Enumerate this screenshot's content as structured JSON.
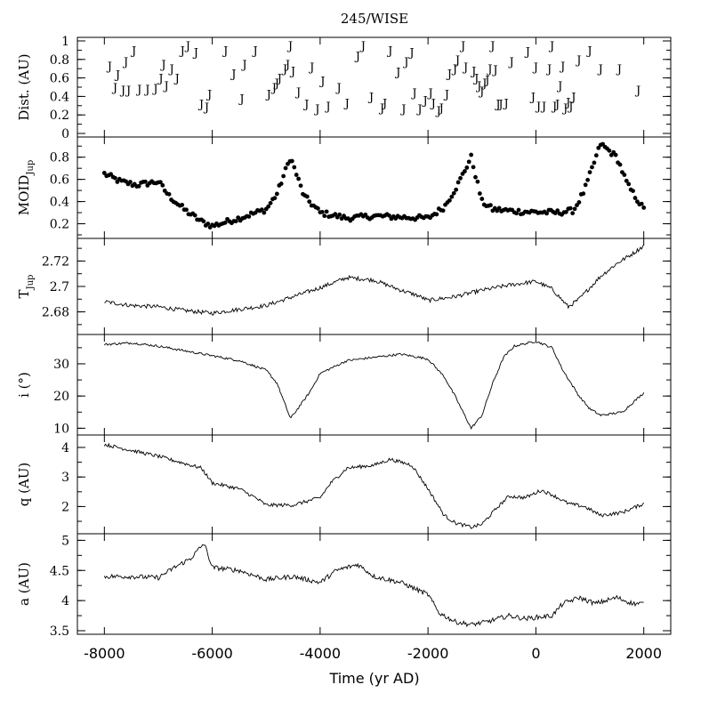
{
  "chart_data": {
    "type": "panel-stack",
    "title": "245/WISE",
    "xlabel": "Time (yr AD)",
    "xlim": [
      -8500,
      2500
    ],
    "xticks": [
      -8000,
      -6000,
      -4000,
      -2000,
      0,
      2000
    ],
    "xtick_labels": [
      "-8000",
      "-6000",
      "-4000",
      "-2000",
      "0",
      "2000"
    ],
    "panels": [
      {
        "id": "dist",
        "type": "scatter",
        "ylabel": "Dist. (AU)",
        "ylim": [
          0,
          1
        ],
        "yticks": [
          0,
          0.2,
          0.4,
          0.6,
          0.8,
          1
        ],
        "ytick_labels": [
          "0",
          "0.2",
          "0.4",
          "0.6",
          "0.8",
          "1"
        ],
        "marker_label": "J",
        "points": [
          [
            -7900,
            0.73
          ],
          [
            -7750,
            0.64
          ],
          [
            -7600,
            0.78
          ],
          [
            -7450,
            0.9
          ],
          [
            -7800,
            0.5
          ],
          [
            -7650,
            0.47
          ],
          [
            -7550,
            0.47
          ],
          [
            -7350,
            0.48
          ],
          [
            -7200,
            0.48
          ],
          [
            -7050,
            0.49
          ],
          [
            -6950,
            0.6
          ],
          [
            -6900,
            0.75
          ],
          [
            -6850,
            0.52
          ],
          [
            -6750,
            0.7
          ],
          [
            -6650,
            0.6
          ],
          [
            -6550,
            0.9
          ],
          [
            -6450,
            0.95
          ],
          [
            -6300,
            0.88
          ],
          [
            -6200,
            0.32
          ],
          [
            -6100,
            0.29
          ],
          [
            -6050,
            0.43
          ],
          [
            -5750,
            0.9
          ],
          [
            -5600,
            0.65
          ],
          [
            -5450,
            0.38
          ],
          [
            -5400,
            0.75
          ],
          [
            -5200,
            0.9
          ],
          [
            -4950,
            0.43
          ],
          [
            -4850,
            0.5
          ],
          [
            -4800,
            0.55
          ],
          [
            -4750,
            0.6
          ],
          [
            -4650,
            0.7
          ],
          [
            -4600,
            0.75
          ],
          [
            -4550,
            0.95
          ],
          [
            -4500,
            0.68
          ],
          [
            -4400,
            0.45
          ],
          [
            -4250,
            0.32
          ],
          [
            -4150,
            0.72
          ],
          [
            -4050,
            0.27
          ],
          [
            -3950,
            0.57
          ],
          [
            -3850,
            0.3
          ],
          [
            -3650,
            0.5
          ],
          [
            -3500,
            0.33
          ],
          [
            -3300,
            0.84
          ],
          [
            -3200,
            0.95
          ],
          [
            -3050,
            0.4
          ],
          [
            -2850,
            0.28
          ],
          [
            -2800,
            0.33
          ],
          [
            -2700,
            0.9
          ],
          [
            -2550,
            0.67
          ],
          [
            -2450,
            0.27
          ],
          [
            -2400,
            0.78
          ],
          [
            -2300,
            0.88
          ],
          [
            -2250,
            0.44
          ],
          [
            -2150,
            0.27
          ],
          [
            -2050,
            0.36
          ],
          [
            -1950,
            0.44
          ],
          [
            -1900,
            0.33
          ],
          [
            -1800,
            0.25
          ],
          [
            -1750,
            0.28
          ],
          [
            -1650,
            0.43
          ],
          [
            -1600,
            0.65
          ],
          [
            -1500,
            0.7
          ],
          [
            -1450,
            0.8
          ],
          [
            -1350,
            0.95
          ],
          [
            -1300,
            0.72
          ],
          [
            -1150,
            0.68
          ],
          [
            -1100,
            0.6
          ],
          [
            -1050,
            0.52
          ],
          [
            -1000,
            0.46
          ],
          [
            -950,
            0.55
          ],
          [
            -900,
            0.58
          ],
          [
            -850,
            0.7
          ],
          [
            -800,
            0.95
          ],
          [
            -750,
            0.69
          ],
          [
            -700,
            0.32
          ],
          [
            -650,
            0.32
          ],
          [
            -550,
            0.33
          ],
          [
            -450,
            0.78
          ],
          [
            -150,
            0.89
          ],
          [
            -50,
            0.4
          ],
          [
            0,
            0.72
          ],
          [
            50,
            0.3
          ],
          [
            150,
            0.3
          ],
          [
            250,
            0.7
          ],
          [
            300,
            0.95
          ],
          [
            350,
            0.3
          ],
          [
            400,
            0.32
          ],
          [
            450,
            0.52
          ],
          [
            500,
            0.73
          ],
          [
            550,
            0.28
          ],
          [
            600,
            0.34
          ],
          [
            650,
            0.3
          ],
          [
            700,
            0.4
          ],
          [
            800,
            0.8
          ],
          [
            1000,
            0.9
          ],
          [
            1200,
            0.7
          ],
          [
            1550,
            0.7
          ],
          [
            1900,
            0.47
          ]
        ]
      },
      {
        "id": "moid",
        "type": "scatter",
        "ylabel": "MOID",
        "ylabel_sub": "Jup",
        "ylim": [
          0.1,
          0.95
        ],
        "yticks": [
          0.2,
          0.4,
          0.6,
          0.8
        ],
        "ytick_labels": [
          "0.2",
          "0.4",
          "0.6",
          "0.8"
        ],
        "keypoints": [
          [
            -8000,
            0.65
          ],
          [
            -7700,
            0.58
          ],
          [
            -7400,
            0.55
          ],
          [
            -7000,
            0.58
          ],
          [
            -6800,
            0.45
          ],
          [
            -6500,
            0.32
          ],
          [
            -6200,
            0.22
          ],
          [
            -6000,
            0.18
          ],
          [
            -5500,
            0.25
          ],
          [
            -5000,
            0.33
          ],
          [
            -4800,
            0.47
          ],
          [
            -4550,
            0.8
          ],
          [
            -4300,
            0.45
          ],
          [
            -4000,
            0.3
          ],
          [
            -3500,
            0.25
          ],
          [
            -3000,
            0.27
          ],
          [
            -2500,
            0.26
          ],
          [
            -2000,
            0.25
          ],
          [
            -1700,
            0.35
          ],
          [
            -1450,
            0.55
          ],
          [
            -1200,
            0.8
          ],
          [
            -1000,
            0.4
          ],
          [
            -800,
            0.33
          ],
          [
            -300,
            0.31
          ],
          [
            400,
            0.3
          ],
          [
            700,
            0.32
          ],
          [
            900,
            0.5
          ],
          [
            1200,
            0.92
          ],
          [
            1500,
            0.8
          ],
          [
            1700,
            0.55
          ],
          [
            2000,
            0.33
          ]
        ]
      },
      {
        "id": "tjup",
        "type": "line",
        "ylabel": "T",
        "ylabel_sub": "Jup",
        "ylim": [
          2.665,
          2.735
        ],
        "yticks": [
          2.68,
          2.7,
          2.72
        ],
        "ytick_labels": [
          "2.68",
          "2.7",
          "2.72"
        ],
        "keypoints": [
          [
            -8000,
            2.688
          ],
          [
            -7500,
            2.685
          ],
          [
            -7000,
            2.684
          ],
          [
            -6500,
            2.681
          ],
          [
            -6000,
            2.679
          ],
          [
            -5000,
            2.685
          ],
          [
            -4500,
            2.692
          ],
          [
            -4000,
            2.699
          ],
          [
            -3500,
            2.707
          ],
          [
            -3000,
            2.705
          ],
          [
            -2500,
            2.697
          ],
          [
            -2200,
            2.693
          ],
          [
            -2000,
            2.689
          ],
          [
            -1500,
            2.692
          ],
          [
            -1000,
            2.697
          ],
          [
            -500,
            2.701
          ],
          [
            0,
            2.704
          ],
          [
            300,
            2.698
          ],
          [
            600,
            2.684
          ],
          [
            800,
            2.69
          ],
          [
            1000,
            2.699
          ],
          [
            1200,
            2.708
          ],
          [
            1500,
            2.718
          ],
          [
            1800,
            2.726
          ],
          [
            2000,
            2.732
          ]
        ]
      },
      {
        "id": "incl",
        "type": "line",
        "ylabel": "i (°)",
        "ylim": [
          9,
          38
        ],
        "yticks": [
          10,
          20,
          30
        ],
        "ytick_labels": [
          "10",
          "20",
          "30"
        ],
        "keypoints": [
          [
            -8000,
            36
          ],
          [
            -7500,
            36.5
          ],
          [
            -7000,
            35.5
          ],
          [
            -6500,
            34
          ],
          [
            -6000,
            32.5
          ],
          [
            -5500,
            31
          ],
          [
            -5000,
            28
          ],
          [
            -4800,
            24
          ],
          [
            -4550,
            13
          ],
          [
            -4200,
            21
          ],
          [
            -4000,
            27
          ],
          [
            -3500,
            31
          ],
          [
            -3000,
            32
          ],
          [
            -2500,
            33
          ],
          [
            -2000,
            31.5
          ],
          [
            -1700,
            26
          ],
          [
            -1500,
            20
          ],
          [
            -1200,
            10
          ],
          [
            -1000,
            14
          ],
          [
            -800,
            24
          ],
          [
            -600,
            32
          ],
          [
            -400,
            35.5
          ],
          [
            0,
            37
          ],
          [
            300,
            35
          ],
          [
            500,
            28
          ],
          [
            800,
            20
          ],
          [
            1000,
            16
          ],
          [
            1200,
            14
          ],
          [
            1600,
            15
          ],
          [
            2000,
            21
          ]
        ]
      },
      {
        "id": "q",
        "type": "line",
        "ylabel": "q (AU)",
        "ylim": [
          1.2,
          4.3
        ],
        "yticks": [
          2,
          3,
          4
        ],
        "ytick_labels": [
          "2",
          "3",
          "4"
        ],
        "keypoints": [
          [
            -8000,
            4.1
          ],
          [
            -7500,
            3.9
          ],
          [
            -7000,
            3.7
          ],
          [
            -6500,
            3.45
          ],
          [
            -6200,
            3.3
          ],
          [
            -6000,
            2.8
          ],
          [
            -5500,
            2.6
          ],
          [
            -5200,
            2.3
          ],
          [
            -5000,
            2.05
          ],
          [
            -4500,
            2.05
          ],
          [
            -4000,
            2.3
          ],
          [
            -3800,
            2.8
          ],
          [
            -3500,
            3.3
          ],
          [
            -3000,
            3.4
          ],
          [
            -2700,
            3.6
          ],
          [
            -2300,
            3.4
          ],
          [
            -2000,
            2.6
          ],
          [
            -1700,
            1.7
          ],
          [
            -1500,
            1.45
          ],
          [
            -1200,
            1.3
          ],
          [
            -1000,
            1.4
          ],
          [
            -700,
            2.0
          ],
          [
            -500,
            2.35
          ],
          [
            -200,
            2.3
          ],
          [
            100,
            2.55
          ],
          [
            300,
            2.4
          ],
          [
            600,
            2.1
          ],
          [
            900,
            2.0
          ],
          [
            1200,
            1.7
          ],
          [
            1600,
            1.8
          ],
          [
            2000,
            2.1
          ]
        ]
      },
      {
        "id": "a",
        "type": "line",
        "ylabel": "a (AU)",
        "ylim": [
          3.5,
          5.05
        ],
        "yticks": [
          3.5,
          4,
          4.5,
          5
        ],
        "ytick_labels": [
          "3.5",
          "4",
          "4.5",
          "5"
        ],
        "keypoints": [
          [
            -8000,
            4.4
          ],
          [
            -7500,
            4.4
          ],
          [
            -7000,
            4.38
          ],
          [
            -6700,
            4.55
          ],
          [
            -6400,
            4.7
          ],
          [
            -6150,
            4.95
          ],
          [
            -6000,
            4.55
          ],
          [
            -5500,
            4.5
          ],
          [
            -5000,
            4.35
          ],
          [
            -4500,
            4.4
          ],
          [
            -4000,
            4.3
          ],
          [
            -3700,
            4.5
          ],
          [
            -3300,
            4.6
          ],
          [
            -3000,
            4.4
          ],
          [
            -2500,
            4.3
          ],
          [
            -2000,
            4.1
          ],
          [
            -1800,
            3.8
          ],
          [
            -1500,
            3.65
          ],
          [
            -1200,
            3.6
          ],
          [
            -900,
            3.65
          ],
          [
            -500,
            3.75
          ],
          [
            -200,
            3.7
          ],
          [
            300,
            3.75
          ],
          [
            500,
            3.95
          ],
          [
            800,
            4.05
          ],
          [
            1100,
            3.95
          ],
          [
            1500,
            4.05
          ],
          [
            1800,
            3.95
          ],
          [
            2000,
            3.95
          ]
        ]
      }
    ]
  }
}
